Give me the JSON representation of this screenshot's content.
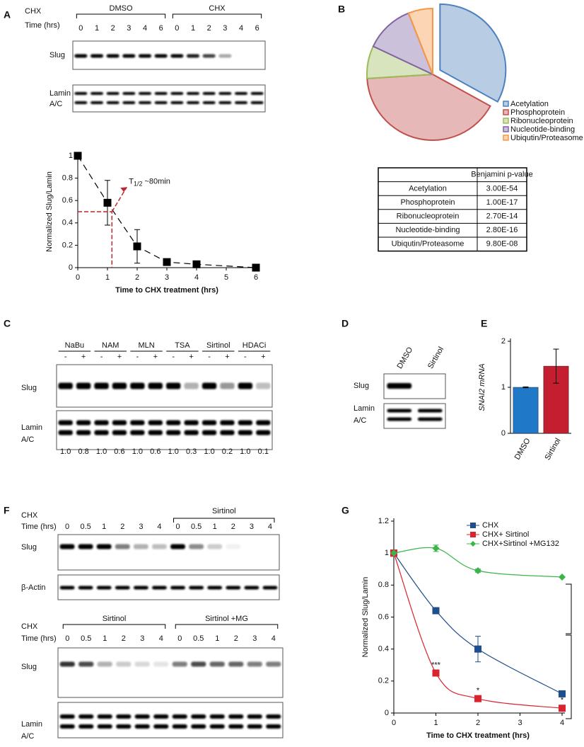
{
  "panel_letters": [
    "A",
    "B",
    "C",
    "D",
    "E",
    "F",
    "G"
  ],
  "blot_A": {
    "chx": "CHX",
    "time": "Time (hrs)",
    "groups": [
      "DMSO",
      "CHX"
    ],
    "lanes": [
      "0",
      "1",
      "2",
      "3",
      "4",
      "6",
      "0",
      "1",
      "2",
      "3",
      "4",
      "6"
    ],
    "labels": [
      "Slug",
      "Lamin",
      "A/C"
    ]
  },
  "blot_C": {
    "groups": [
      "NaBu",
      "NAM",
      "MLN",
      "TSA",
      "Sirtinol",
      "HDACi"
    ],
    "treatment": [
      "-",
      "+",
      "-",
      "+",
      "-",
      "+",
      "-",
      "+",
      "-",
      "+",
      "-",
      "+"
    ],
    "quantification": [
      "1.0",
      "0.8",
      "1.0",
      "0.6",
      "1.0",
      "0.6",
      "1.0",
      "0.3",
      "1.0",
      "0.2",
      "1.0",
      "0.1"
    ],
    "labels": [
      "Slug",
      "Lamin",
      "A/C"
    ]
  },
  "blot_D": {
    "lanes": [
      "DMSO",
      "Sirtinol"
    ],
    "labels": [
      "Slug",
      "Lamin",
      "A/C"
    ]
  },
  "blot_F": {
    "chx": "CHX",
    "time": "Time (hrs)",
    "group": "Sirtinol",
    "lanes": [
      "0",
      "0.5",
      "1",
      "2",
      "3",
      "4",
      "0",
      "0.5",
      "1",
      "2",
      "3",
      "4"
    ],
    "labels": [
      "Slug",
      "β-Actin"
    ]
  },
  "blot_F2": {
    "chx": "CHX",
    "time": "Time (hrs)",
    "groups": [
      "Sirtinol",
      "Sirtinol +MG"
    ],
    "lanes": [
      "0",
      "0.5",
      "1",
      "2",
      "3",
      "4",
      "0",
      "0.5",
      "1",
      "2",
      "3",
      "4"
    ],
    "labels": [
      "Slug",
      "Lamin",
      "A/C"
    ]
  },
  "table": {
    "header": "Benjamini p-value",
    "highlight_color": "#2e75b6",
    "rows": [
      [
        "Acetylation",
        "3.00E-54"
      ],
      [
        "Phosphoprotein",
        "1.00E-17"
      ],
      [
        "Ribonucleoprotein",
        "2.70E-14"
      ],
      [
        "Nucleotide-binding",
        "2.80E-16"
      ],
      [
        "Ubiqutin/Proteasome",
        "9.80E-08"
      ]
    ]
  },
  "chart_data": [
    {
      "type": "line",
      "x": [
        0,
        1,
        2,
        3,
        4,
        6
      ],
      "values": [
        1,
        0.58,
        0.19,
        0.05,
        0.03,
        0
      ],
      "errors": [
        0,
        0.2,
        0.15,
        0,
        0,
        0
      ],
      "color": "#000000",
      "line_style": "dashed",
      "marker": "square",
      "xlim": [
        0,
        6
      ],
      "ylim": [
        0,
        1
      ],
      "xticks": [
        0,
        1,
        2,
        3,
        4,
        5,
        6
      ],
      "yticks": [
        0,
        0.2,
        0.4,
        0.6,
        0.8,
        1
      ],
      "xlabel": "Time to CHX treatment (hrs)",
      "ylabel": "Normalized Slug/Lamin",
      "annotation": {
        "symbol": "T",
        "subscript": "1/2",
        "text": "~80min"
      },
      "annotation_color": "#c0262d"
    },
    {
      "type": "pie",
      "categories": [
        "Acetylation",
        "Phosphoprotein",
        "Ribonucleoprotein",
        "Nucleotide-binding",
        "Ubiqutin/Proteasome"
      ],
      "values": [
        33,
        41,
        8,
        12,
        6
      ],
      "colors": [
        "#b8cce4",
        "#e6b9b8",
        "#d7e4bd",
        "#ccc1da",
        "#fcd5b5"
      ],
      "edge_colors": [
        "#4f81bd",
        "#c0504d",
        "#9bbb59",
        "#8064a2",
        "#f79646"
      ]
    },
    {
      "type": "bar",
      "categories": [
        "DMSO",
        "Sirtinol"
      ],
      "values": [
        1,
        1.46
      ],
      "errors": [
        0.01,
        0.37
      ],
      "colors": [
        "#1f78c8",
        "#c41e30"
      ],
      "ylim": [
        0,
        2
      ],
      "yticks": [
        0,
        1,
        2
      ],
      "ylabel": "SNAI2 mRNA"
    },
    {
      "type": "line",
      "x": [
        0,
        1,
        2,
        4
      ],
      "smooth": true,
      "xlim": [
        0,
        4
      ],
      "ylim": [
        0,
        1.2
      ],
      "xticks": [
        0,
        1,
        2,
        3,
        4
      ],
      "yticks": [
        0,
        0.2,
        0.4,
        0.6,
        0.8,
        1,
        1.2
      ],
      "xlabel": "Time to CHX treatment (hrs)",
      "ylabel": "Normalized Slug/Lamin",
      "series": [
        {
          "name": "CHX",
          "color": "#1f4e8c",
          "marker": "square",
          "values": [
            1,
            0.64,
            0.4,
            0.12
          ],
          "errors": [
            0,
            0,
            0.08,
            0
          ]
        },
        {
          "name": "CHX+ Sirtinol",
          "color": "#d9232e",
          "marker": "square",
          "values": [
            1,
            0.25,
            0.09,
            0.03
          ],
          "errors": [
            0,
            0,
            0,
            0
          ]
        },
        {
          "name": "CHX+Sirtinol +MG132",
          "color": "#3bb54a",
          "marker": "diamond",
          "values": [
            1,
            1.03,
            0.89,
            0.85
          ],
          "errors": [
            0,
            0.02,
            0.01,
            0
          ]
        }
      ],
      "significance": [
        null,
        "***",
        "*",
        "*"
      ]
    }
  ]
}
